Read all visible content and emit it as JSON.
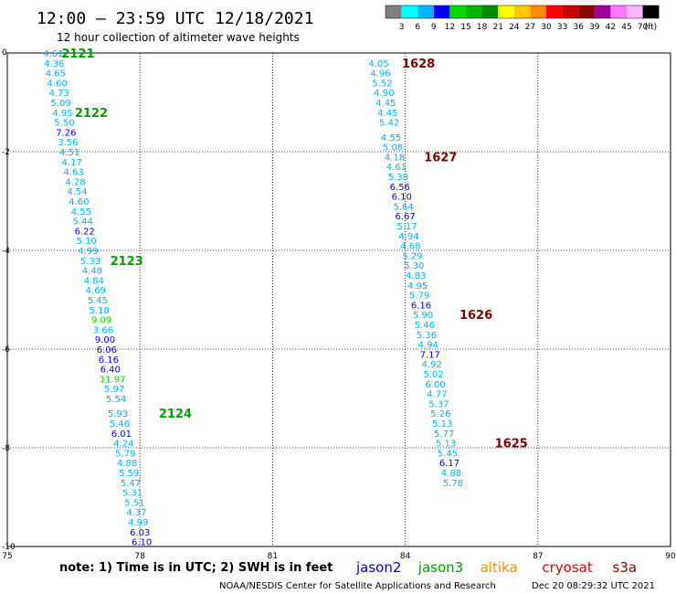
{
  "header": {
    "title": "12:00 – 23:59 UTC 12/18/2021",
    "subtitle": "12 hour collection of altimeter wave heights"
  },
  "legend": {
    "colors": [
      "#808080",
      "#00ffff",
      "#00b4ff",
      "#0000ff",
      "#00dc00",
      "#00b400",
      "#008c00",
      "#ffff00",
      "#ffc800",
      "#ff8c00",
      "#ff0000",
      "#c80000",
      "#8c0000",
      "#a000a0",
      "#ff78ff",
      "#ffb4ff",
      "#000000"
    ],
    "labels": [
      "3",
      "6",
      "9",
      "12",
      "15",
      "18",
      "21",
      "24",
      "27",
      "30",
      "33",
      "36",
      "39",
      "42",
      "45",
      "70",
      "(ft)"
    ]
  },
  "footer": {
    "note": "note:  1) Time is in UTC;  2) SWH is in feet",
    "credit": "NOAA/NESDIS Center for Satellite Applications and Research",
    "timestamp": "Dec 20 08:29:32 UTC 2021",
    "satellites": [
      {
        "name": "jason2",
        "color": "#0000c8"
      },
      {
        "name": "jason3",
        "color": "#00a000"
      },
      {
        "name": "altika",
        "color": "#ff8c00"
      },
      {
        "name": "cryosat",
        "color": "#e00000"
      },
      {
        "name": "s3a",
        "color": "#800000"
      }
    ]
  },
  "chart_data": {
    "type": "scatter",
    "xlim": [
      75,
      90
    ],
    "ylim": [
      -10,
      0
    ],
    "xticks": [
      75,
      78,
      81,
      84,
      87,
      90
    ],
    "yticks": [
      0,
      -2,
      -4,
      -6,
      -8,
      -10
    ],
    "grid": true,
    "tracks": [
      {
        "satellite": "jason3",
        "points": [
          {
            "x": 76.04,
            "y": 0.0,
            "v": "4.61"
          },
          {
            "x": 76.06,
            "y": -0.2,
            "v": "4.36"
          },
          {
            "x": 76.09,
            "y": -0.4,
            "v": "4.65"
          },
          {
            "x": 76.13,
            "y": -0.6,
            "v": "4.60"
          },
          {
            "x": 76.17,
            "y": -0.8,
            "v": "4.73"
          },
          {
            "x": 76.21,
            "y": -1.0,
            "v": "5.09"
          },
          {
            "x": 76.25,
            "y": -1.2,
            "v": "4.95"
          },
          {
            "x": 76.29,
            "y": -1.4,
            "v": "5.50"
          },
          {
            "x": 76.33,
            "y": -1.6,
            "v": "7.26"
          },
          {
            "x": 76.37,
            "y": -1.8,
            "v": "3.56"
          },
          {
            "x": 76.41,
            "y": -2.0,
            "v": "4.51"
          },
          {
            "x": 76.46,
            "y": -2.2,
            "v": "4.17"
          },
          {
            "x": 76.5,
            "y": -2.4,
            "v": "4.63"
          },
          {
            "x": 76.54,
            "y": -2.6,
            "v": "4.28"
          },
          {
            "x": 76.58,
            "y": -2.8,
            "v": "4.54"
          },
          {
            "x": 76.62,
            "y": -3.0,
            "v": "4.60"
          },
          {
            "x": 76.67,
            "y": -3.2,
            "v": "4.55"
          },
          {
            "x": 76.71,
            "y": -3.4,
            "v": "5.44"
          },
          {
            "x": 76.75,
            "y": -3.6,
            "v": "6.22"
          },
          {
            "x": 76.79,
            "y": -3.8,
            "v": "5.10"
          },
          {
            "x": 76.83,
            "y": -4.0,
            "v": "4.99"
          },
          {
            "x": 76.88,
            "y": -4.2,
            "v": "5.33"
          },
          {
            "x": 76.92,
            "y": -4.4,
            "v": "4.48"
          },
          {
            "x": 76.96,
            "y": -4.6,
            "v": "4.84"
          },
          {
            "x": 77.0,
            "y": -4.8,
            "v": "4.69"
          },
          {
            "x": 77.04,
            "y": -5.0,
            "v": "5.45"
          },
          {
            "x": 77.08,
            "y": -5.2,
            "v": "5.18"
          },
          {
            "x": 77.13,
            "y": -5.4,
            "v": "9.09"
          },
          {
            "x": 77.17,
            "y": -5.6,
            "v": "3.66"
          },
          {
            "x": 77.21,
            "y": -5.8,
            "v": "9.00"
          },
          {
            "x": 77.25,
            "y": -6.0,
            "v": "6.06"
          },
          {
            "x": 77.29,
            "y": -6.2,
            "v": "6.16"
          },
          {
            "x": 77.33,
            "y": -6.4,
            "v": "6.40"
          },
          {
            "x": 77.38,
            "y": -6.6,
            "v": "11.97"
          },
          {
            "x": 77.42,
            "y": -6.8,
            "v": "5.97"
          },
          {
            "x": 77.46,
            "y": -7.0,
            "v": "5.54"
          },
          {
            "x": 77.5,
            "y": -7.3,
            "v": "5.93"
          },
          {
            "x": 77.54,
            "y": -7.5,
            "v": "5.46"
          },
          {
            "x": 77.58,
            "y": -7.7,
            "v": "6.01"
          },
          {
            "x": 77.63,
            "y": -7.9,
            "v": "4.24"
          },
          {
            "x": 77.67,
            "y": -8.1,
            "v": "5.79"
          },
          {
            "x": 77.71,
            "y": -8.3,
            "v": "4.88"
          },
          {
            "x": 77.75,
            "y": -8.5,
            "v": "5.59"
          },
          {
            "x": 77.79,
            "y": -8.7,
            "v": "5.47"
          },
          {
            "x": 77.83,
            "y": -8.9,
            "v": "5.31"
          },
          {
            "x": 77.88,
            "y": -9.1,
            "v": "5.51"
          },
          {
            "x": 77.92,
            "y": -9.3,
            "v": "4.37"
          },
          {
            "x": 77.96,
            "y": -9.5,
            "v": "4.99"
          },
          {
            "x": 78.0,
            "y": -9.7,
            "v": "6.03"
          },
          {
            "x": 78.04,
            "y": -9.9,
            "v": "6.10"
          }
        ],
        "passes": [
          {
            "label": "2121",
            "x": 76.6,
            "y": 0.0
          },
          {
            "label": "2122",
            "x": 76.9,
            "y": -1.2
          },
          {
            "label": "2123",
            "x": 77.7,
            "y": -4.2
          },
          {
            "label": "2124",
            "x": 78.8,
            "y": -7.3
          }
        ]
      },
      {
        "satellite": "s3a",
        "points": [
          {
            "x": 83.4,
            "y": -0.2,
            "v": "4.05"
          },
          {
            "x": 83.44,
            "y": -0.4,
            "v": "4.96"
          },
          {
            "x": 83.48,
            "y": -0.6,
            "v": "5.52"
          },
          {
            "x": 83.52,
            "y": -0.8,
            "v": "4.90"
          },
          {
            "x": 83.56,
            "y": -1.0,
            "v": "4.45"
          },
          {
            "x": 83.6,
            "y": -1.2,
            "v": "4.45"
          },
          {
            "x": 83.64,
            "y": -1.4,
            "v": "5.42"
          },
          {
            "x": 83.68,
            "y": -1.7,
            "v": "4.55"
          },
          {
            "x": 83.72,
            "y": -1.9,
            "v": "5.08"
          },
          {
            "x": 83.76,
            "y": -2.1,
            "v": "4.18"
          },
          {
            "x": 83.8,
            "y": -2.3,
            "v": "4.61"
          },
          {
            "x": 83.84,
            "y": -2.5,
            "v": "5.38"
          },
          {
            "x": 83.88,
            "y": -2.7,
            "v": "6.56"
          },
          {
            "x": 83.92,
            "y": -2.9,
            "v": "6.10"
          },
          {
            "x": 83.96,
            "y": -3.1,
            "v": "5.64"
          },
          {
            "x": 84.0,
            "y": -3.3,
            "v": "6.67"
          },
          {
            "x": 84.04,
            "y": -3.5,
            "v": "5.17"
          },
          {
            "x": 84.08,
            "y": -3.7,
            "v": "4.94"
          },
          {
            "x": 84.12,
            "y": -3.9,
            "v": "4.68"
          },
          {
            "x": 84.16,
            "y": -4.1,
            "v": "5.29"
          },
          {
            "x": 84.2,
            "y": -4.3,
            "v": "5.30"
          },
          {
            "x": 84.24,
            "y": -4.5,
            "v": "4.83"
          },
          {
            "x": 84.28,
            "y": -4.7,
            "v": "4.95"
          },
          {
            "x": 84.32,
            "y": -4.9,
            "v": "5.79"
          },
          {
            "x": 84.36,
            "y": -5.1,
            "v": "6.16"
          },
          {
            "x": 84.4,
            "y": -5.3,
            "v": "5.90"
          },
          {
            "x": 84.44,
            "y": -5.5,
            "v": "5.46"
          },
          {
            "x": 84.48,
            "y": -5.7,
            "v": "5.36"
          },
          {
            "x": 84.52,
            "y": -5.9,
            "v": "4.94"
          },
          {
            "x": 84.56,
            "y": -6.1,
            "v": "7.17"
          },
          {
            "x": 84.6,
            "y": -6.3,
            "v": "4.92"
          },
          {
            "x": 84.64,
            "y": -6.5,
            "v": "5.02"
          },
          {
            "x": 84.68,
            "y": -6.7,
            "v": "6.00"
          },
          {
            "x": 84.72,
            "y": -6.9,
            "v": "4.77"
          },
          {
            "x": 84.76,
            "y": -7.1,
            "v": "5.37"
          },
          {
            "x": 84.8,
            "y": -7.3,
            "v": "5.26"
          },
          {
            "x": 84.84,
            "y": -7.5,
            "v": "5.13"
          },
          {
            "x": 84.88,
            "y": -7.7,
            "v": "5.77"
          },
          {
            "x": 84.92,
            "y": -7.9,
            "v": "5.13"
          },
          {
            "x": 84.96,
            "y": -8.1,
            "v": "5.45"
          },
          {
            "x": 85.0,
            "y": -8.3,
            "v": "6.17"
          },
          {
            "x": 85.04,
            "y": -8.5,
            "v": "4.88"
          },
          {
            "x": 85.08,
            "y": -8.7,
            "v": "5.78"
          }
        ],
        "passes": [
          {
            "label": "1628",
            "x": 84.3,
            "y": -0.2
          },
          {
            "label": "1627",
            "x": 84.8,
            "y": -2.1
          },
          {
            "label": "1626",
            "x": 85.6,
            "y": -5.3
          },
          {
            "label": "1625",
            "x": 86.4,
            "y": -7.9
          }
        ]
      }
    ]
  }
}
